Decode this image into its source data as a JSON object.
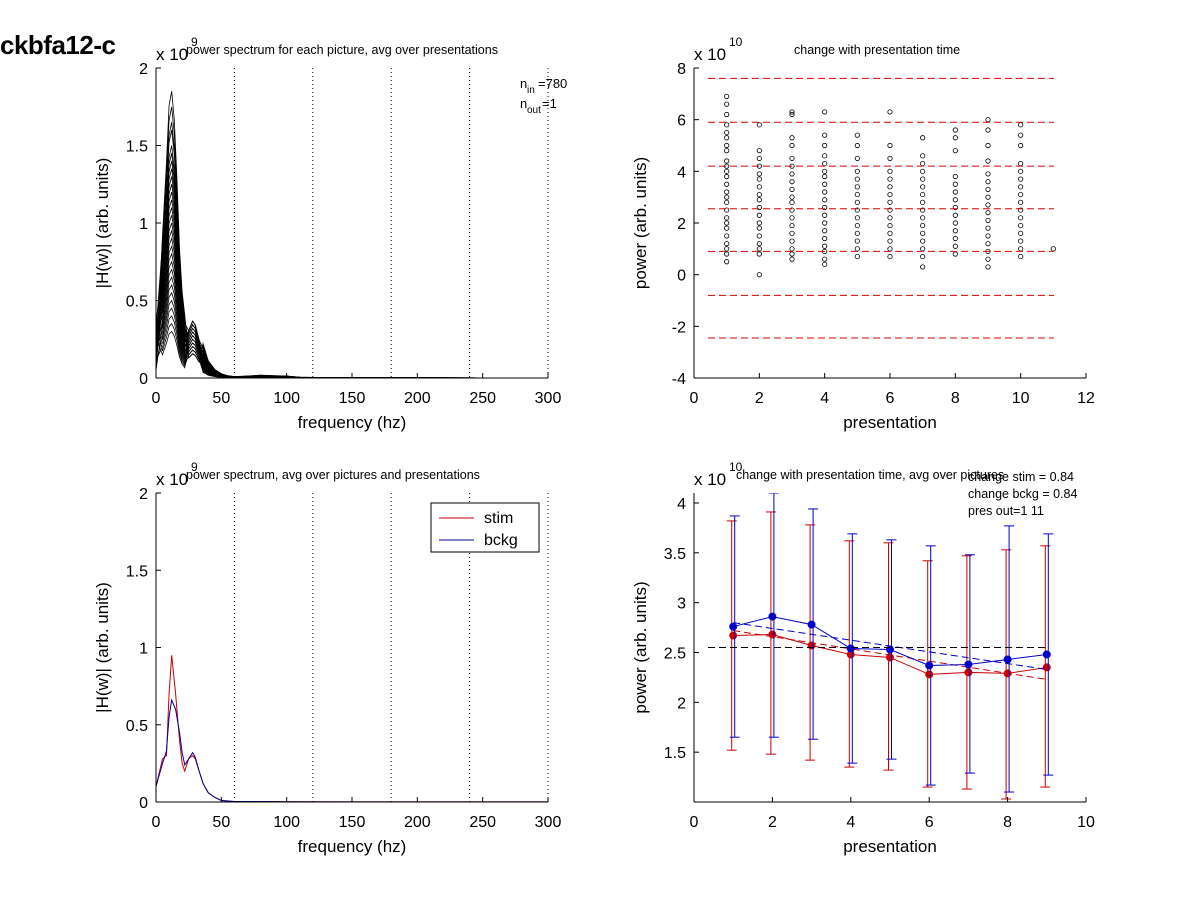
{
  "figure_title": "ckbfa12-c",
  "chart_data": [
    {
      "id": "p1",
      "type": "line",
      "title": "power spectrum for each picture, avg over presentations",
      "xlabel": "frequency (hz)",
      "ylabel": "|H(w)| (arb. units)",
      "exponent": "9",
      "xlim": [
        0,
        300
      ],
      "ylim": [
        0,
        2
      ],
      "xticks": [
        0,
        50,
        100,
        150,
        200,
        250,
        300
      ],
      "yticks": [
        0,
        0.5,
        1,
        1.5,
        2
      ],
      "ytick_labels": [
        "0",
        "0.5",
        "1",
        "1.5",
        "2"
      ],
      "vlines": [
        60,
        120,
        180,
        240,
        300
      ],
      "annotations": {
        "n_in_label": "n",
        "n_in_sub": "in",
        "n_in_value": "=780",
        "n_out_label": "n",
        "n_out_sub": "out",
        "n_out_value": "=1"
      },
      "series_template": {
        "x": [
          0,
          5,
          8,
          10,
          12,
          14,
          16,
          18,
          20,
          22,
          25,
          28,
          30,
          33,
          36,
          40,
          45,
          50,
          55,
          60,
          70,
          80,
          90,
          100,
          110,
          120,
          150,
          200,
          250,
          300
        ],
        "shape": [
          0.2,
          0.5,
          0.75,
          0.95,
          1.0,
          0.9,
          0.7,
          0.45,
          0.3,
          0.22,
          0.25,
          0.3,
          0.28,
          0.2,
          0.12,
          0.06,
          0.03,
          0.015,
          0.008,
          0.005,
          0.007,
          0.01,
          0.008,
          0.007,
          0.003,
          0.002,
          0.001,
          0.001,
          0.0005,
          0.0005
        ]
      },
      "series_peaks": [
        1.85,
        1.75,
        1.65,
        1.6,
        1.5,
        1.45,
        1.4,
        1.35,
        1.3,
        1.25,
        1.2,
        1.15,
        1.1,
        1.05,
        1.0,
        0.95,
        0.9,
        0.85,
        0.8,
        0.75,
        0.7,
        0.65,
        0.6,
        0.55,
        0.5,
        0.45,
        0.4,
        0.35,
        0.3
      ]
    },
    {
      "id": "p2",
      "type": "scatter",
      "title": "change with presentation time",
      "xlabel": "presentation",
      "ylabel": "power (arb. units)",
      "exponent": "10",
      "xlim": [
        0,
        12
      ],
      "ylim": [
        -4,
        8
      ],
      "xticks": [
        0,
        2,
        4,
        6,
        8,
        10,
        12
      ],
      "yticks": [
        -4,
        -2,
        0,
        2,
        4,
        6,
        8
      ],
      "hlines": [
        7.6,
        5.9,
        4.2,
        2.55,
        0.9,
        -0.8,
        -2.45
      ],
      "points": [
        {
          "x": 1,
          "y": [
            0.5,
            0.8,
            1.0,
            1.2,
            1.5,
            1.8,
            2.0,
            2.2,
            2.5,
            2.8,
            3.0,
            3.2,
            3.5,
            3.8,
            4.0,
            4.2,
            4.4,
            4.8,
            5.0,
            5.3,
            5.5,
            5.8,
            6.2,
            6.6,
            6.9
          ]
        },
        {
          "x": 2,
          "y": [
            0.0,
            0.8,
            1.0,
            1.2,
            1.5,
            1.8,
            2.0,
            2.3,
            2.6,
            2.9,
            3.1,
            3.4,
            3.7,
            3.9,
            4.2,
            4.5,
            4.8,
            5.8
          ]
        },
        {
          "x": 3,
          "y": [
            0.6,
            0.8,
            1.0,
            1.3,
            1.6,
            1.9,
            2.2,
            2.5,
            2.8,
            3.0,
            3.3,
            3.6,
            3.9,
            4.2,
            4.5,
            5.0,
            5.3,
            6.2,
            6.3
          ]
        },
        {
          "x": 4,
          "y": [
            0.4,
            0.6,
            0.9,
            1.1,
            1.4,
            1.7,
            2.0,
            2.3,
            2.6,
            2.9,
            3.2,
            3.5,
            3.8,
            4.0,
            4.3,
            4.6,
            5.0,
            5.4,
            6.3
          ]
        },
        {
          "x": 5,
          "y": [
            0.7,
            1.0,
            1.3,
            1.6,
            1.9,
            2.2,
            2.5,
            2.8,
            3.1,
            3.4,
            3.7,
            4.0,
            4.5,
            5.0,
            5.4
          ]
        },
        {
          "x": 6,
          "y": [
            0.7,
            1.0,
            1.3,
            1.6,
            1.9,
            2.2,
            2.5,
            2.8,
            3.1,
            3.4,
            3.7,
            4.0,
            4.5,
            5.0,
            6.3
          ]
        },
        {
          "x": 7,
          "y": [
            0.3,
            0.7,
            1.0,
            1.3,
            1.6,
            1.9,
            2.2,
            2.5,
            2.8,
            3.1,
            3.4,
            3.7,
            4.0,
            4.3,
            4.6,
            5.3
          ]
        },
        {
          "x": 8,
          "y": [
            0.8,
            1.1,
            1.4,
            1.7,
            2.0,
            2.3,
            2.6,
            2.9,
            3.2,
            3.5,
            3.8,
            4.8,
            5.3,
            5.6
          ]
        },
        {
          "x": 9,
          "y": [
            0.3,
            0.6,
            0.9,
            1.2,
            1.5,
            1.8,
            2.1,
            2.4,
            2.7,
            3.0,
            3.3,
            3.6,
            3.9,
            4.4,
            5.0,
            5.6,
            6.0
          ]
        },
        {
          "x": 10,
          "y": [
            0.7,
            1.0,
            1.3,
            1.6,
            1.9,
            2.2,
            2.5,
            2.8,
            3.1,
            3.4,
            3.7,
            4.0,
            4.3,
            5.0,
            5.4,
            5.8
          ]
        },
        {
          "x": 11,
          "y": [
            1.0
          ]
        }
      ]
    },
    {
      "id": "p3",
      "type": "line",
      "title": "power spectrum, avg over pictures and presentations",
      "xlabel": "frequency (hz)",
      "ylabel": "|H(w)| (arb. units)",
      "exponent": "9",
      "xlim": [
        0,
        300
      ],
      "ylim": [
        0,
        2
      ],
      "xticks": [
        0,
        50,
        100,
        150,
        200,
        250,
        300
      ],
      "yticks": [
        0,
        0.5,
        1,
        1.5,
        2
      ],
      "ytick_labels": [
        "0",
        "0.5",
        "1",
        "1.5",
        "2"
      ],
      "vlines": [
        60,
        120,
        180,
        240,
        300
      ],
      "series": [
        {
          "name": "stim",
          "color": "#cc0000",
          "x": [
            0,
            5,
            8,
            10,
            12,
            15,
            18,
            20,
            22,
            25,
            28,
            30,
            33,
            36,
            40,
            45,
            50,
            60,
            80,
            100,
            150,
            200,
            250,
            300
          ],
          "y": [
            0.1,
            0.28,
            0.3,
            0.7,
            0.95,
            0.7,
            0.4,
            0.25,
            0.2,
            0.28,
            0.3,
            0.28,
            0.2,
            0.12,
            0.06,
            0.03,
            0.01,
            0.003,
            0.003,
            0.002,
            0.001,
            0.001,
            0.001,
            0.001
          ]
        },
        {
          "name": "bckg",
          "color": "#000099",
          "x": [
            0,
            5,
            8,
            10,
            12,
            15,
            18,
            20,
            22,
            25,
            28,
            30,
            33,
            36,
            40,
            45,
            50,
            60,
            80,
            100,
            150,
            200,
            250,
            300
          ],
          "y": [
            0.1,
            0.25,
            0.33,
            0.55,
            0.66,
            0.6,
            0.45,
            0.32,
            0.24,
            0.28,
            0.32,
            0.29,
            0.2,
            0.12,
            0.06,
            0.03,
            0.01,
            0.003,
            0.003,
            0.002,
            0.001,
            0.001,
            0.001,
            0.001
          ]
        }
      ]
    },
    {
      "id": "p4",
      "type": "line",
      "title": "change with presentation time, avg over pictures",
      "xlabel": "presentation",
      "ylabel": "power (arb. units)",
      "exponent": "10",
      "xlim": [
        0,
        10
      ],
      "ylim": [
        1.0,
        4.1
      ],
      "xticks": [
        0,
        2,
        4,
        6,
        8,
        10
      ],
      "yticks": [
        1.5,
        2,
        2.5,
        3,
        3.5,
        4
      ],
      "ytick_labels": [
        "1.5",
        "2",
        "2.5",
        "3",
        "3.5",
        "4"
      ],
      "hline": 2.55,
      "annotations": [
        "change stim = 0.84",
        "change bckg = 0.84",
        "pres out=1 11"
      ],
      "series": [
        {
          "name": "stim",
          "color": "#cc0000",
          "x": [
            1,
            2,
            3,
            4,
            5,
            6,
            7,
            8,
            9
          ],
          "y": [
            2.67,
            2.68,
            2.57,
            2.48,
            2.45,
            2.28,
            2.3,
            2.29,
            2.35
          ],
          "lower": [
            1.52,
            1.48,
            1.42,
            1.35,
            1.32,
            1.15,
            1.13,
            1.03,
            1.15
          ],
          "upper": [
            3.82,
            3.91,
            3.78,
            3.62,
            3.6,
            3.42,
            3.47,
            3.53,
            3.57
          ],
          "trend": [
            2.72,
            2.23
          ]
        },
        {
          "name": "bckg",
          "color": "#0000cc",
          "x": [
            1,
            2,
            3,
            4,
            5,
            6,
            7,
            8,
            9
          ],
          "y": [
            2.76,
            2.86,
            2.78,
            2.54,
            2.53,
            2.37,
            2.38,
            2.43,
            2.48
          ],
          "lower": [
            1.65,
            1.65,
            1.63,
            1.39,
            1.43,
            1.17,
            1.29,
            1.1,
            1.27
          ],
          "upper": [
            3.87,
            4.1,
            3.94,
            3.69,
            3.63,
            3.57,
            3.48,
            3.77,
            3.69
          ],
          "trend": [
            2.8,
            2.33
          ]
        }
      ]
    }
  ]
}
